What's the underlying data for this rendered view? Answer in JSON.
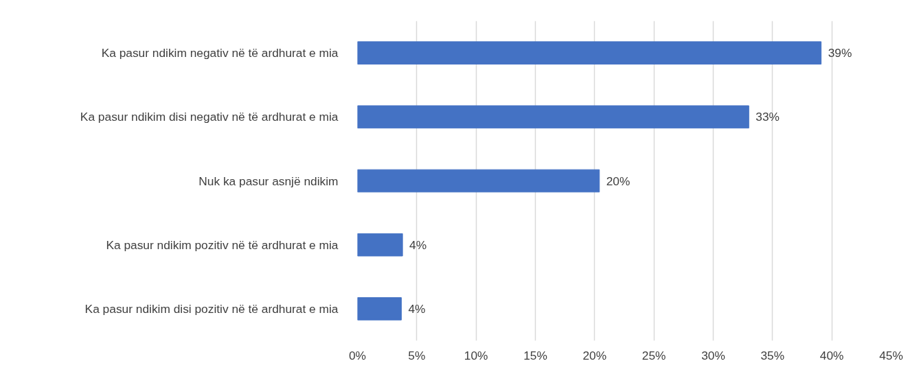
{
  "chart_data": {
    "type": "bar",
    "orientation": "horizontal",
    "categories": [
      "Ka pasur ndikim negativ në të ardhurat e mia",
      "Ka pasur ndikim disi negativ në të ardhurat e mia",
      "Nuk ka pasur asnjë ndikim",
      "Ka pasur ndikim pozitiv në të ardhurat e mia",
      "Ka pasur ndikim disi pozitiv në të ardhurat e mia"
    ],
    "values": [
      39.1,
      33.0,
      20.4,
      3.8,
      3.7
    ],
    "value_labels": [
      "39%",
      "33%",
      "20%",
      "4%",
      "4%"
    ],
    "color": "#4472c4",
    "xlim": [
      0,
      45
    ],
    "xticks": [
      {
        "value": 0,
        "label": "0%"
      },
      {
        "value": 5,
        "label": "5%"
      },
      {
        "value": 10,
        "label": "10%"
      },
      {
        "value": 15,
        "label": "15%"
      },
      {
        "value": 20,
        "label": "20%"
      },
      {
        "value": 25,
        "label": "25%"
      },
      {
        "value": 30,
        "label": "30%"
      },
      {
        "value": 35,
        "label": "35%"
      },
      {
        "value": 40,
        "label": "40%"
      },
      {
        "value": 45,
        "label": "45%"
      }
    ],
    "grid": "x"
  }
}
